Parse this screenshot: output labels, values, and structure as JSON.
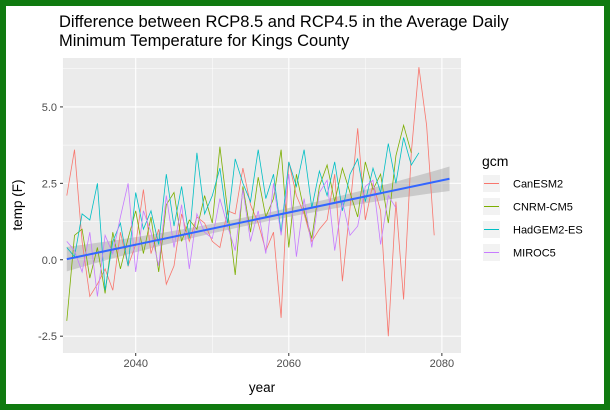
{
  "chart_data": {
    "type": "line",
    "title": "Difference between RCP8.5 and RCP4.5 in the Average Daily Minimum Temperature for Kings County",
    "title_lines": [
      "Difference between RCP8.5 and RCP4.5 in the Average Daily",
      "Minimum Temperature for Kings County"
    ],
    "xlabel": "year",
    "ylabel": "temp (F)",
    "xlim": [
      2030.5,
      2082.5
    ],
    "ylim": [
      -3.05,
      6.6
    ],
    "xticks": [
      2040,
      2060,
      2080
    ],
    "yticks": [
      -2.5,
      0.0,
      2.5,
      5.0
    ],
    "ytick_labels": [
      "-2.5",
      "0.0",
      "2.5",
      "5.0"
    ],
    "grid": true,
    "legend": {
      "title": "gcm",
      "position": "right"
    },
    "x": [
      2031,
      2032,
      2033,
      2034,
      2035,
      2036,
      2037,
      2038,
      2039,
      2040,
      2041,
      2042,
      2043,
      2044,
      2045,
      2046,
      2047,
      2048,
      2049,
      2050,
      2051,
      2052,
      2053,
      2054,
      2055,
      2056,
      2057,
      2058,
      2059,
      2060,
      2061,
      2062,
      2063,
      2064,
      2065,
      2066,
      2067,
      2068,
      2069,
      2070,
      2071,
      2072,
      2073,
      2074,
      2075,
      2076,
      2077,
      2078,
      2079,
      2080,
      2081
    ],
    "series": [
      {
        "name": "CanESM2",
        "color": "#F8766D",
        "values": [
          2.1,
          3.6,
          0.6,
          -1.2,
          -0.8,
          -0.3,
          -1.0,
          0.9,
          -0.2,
          0.5,
          2.3,
          0.2,
          1.0,
          -0.8,
          -0.2,
          1.5,
          0.6,
          1.4,
          1.2,
          0.6,
          0.4,
          1.6,
          1.5,
          3.0,
          1.8,
          1.2,
          0.3,
          0.9,
          -1.9,
          3.2,
          2.1,
          1.5,
          0.6,
          1.0,
          1.3,
          2.8,
          -0.7,
          1.7,
          4.3,
          1.3,
          2.5,
          1.6,
          -2.5,
          1.9,
          -1.3,
          3.5,
          6.3,
          4.4,
          0.8,
          null,
          null
        ]
      },
      {
        "name": "CNRM-CM5",
        "color": "#7CAE00",
        "values": [
          -2.0,
          0.8,
          1.0,
          -0.6,
          0.4,
          -1.1,
          0.9,
          -0.3,
          0.7,
          1.6,
          0.2,
          1.4,
          -0.4,
          1.8,
          2.2,
          0.6,
          1.3,
          1.0,
          2.1,
          1.2,
          3.7,
          1.6,
          -0.5,
          2.4,
          0.9,
          2.7,
          1.4,
          2.0,
          3.6,
          0.4,
          2.8,
          1.6,
          0.7,
          2.4,
          3.1,
          1.9,
          3.0,
          2.2,
          1.4,
          3.2,
          2.3,
          2.8,
          1.2,
          3.4,
          4.4,
          3.5,
          null,
          null,
          null,
          null,
          null
        ]
      },
      {
        "name": "HadGEM2-ES",
        "color": "#00BFC4",
        "values": [
          0.4,
          0.1,
          1.5,
          1.3,
          2.5,
          -1.0,
          0.6,
          1.2,
          -0.2,
          2.2,
          1.0,
          1.6,
          0.5,
          2.8,
          1.1,
          2.4,
          0.7,
          3.5,
          1.5,
          2.1,
          3.0,
          1.2,
          3.3,
          2.5,
          1.9,
          3.6,
          2.0,
          2.8,
          0.9,
          3.2,
          2.4,
          3.6,
          1.7,
          2.9,
          2.1,
          3.2,
          1.6,
          2.8,
          3.3,
          1.9,
          3.0,
          2.2,
          3.8,
          2.5,
          4.0,
          3.1,
          3.5,
          null,
          null,
          null,
          null
        ]
      },
      {
        "name": "MIROC5",
        "color": "#C77CFF",
        "values": [
          0.6,
          0.3,
          -0.4,
          0.9,
          -1.2,
          0.8,
          0.2,
          1.4,
          2.5,
          -0.4,
          1.6,
          0.9,
          -0.2,
          2.1,
          0.4,
          1.8,
          -0.3,
          1.5,
          0.9,
          0.7,
          2.0,
          1.1,
          0.3,
          2.3,
          0.6,
          1.6,
          0.2,
          2.5,
          0.8,
          2.8,
          0.1,
          2.0,
          0.4,
          2.2,
          2.6,
          0.3,
          1.9,
          0.8,
          1.1,
          2.4,
          2.6,
          0.5,
          2.1,
          1.7,
          null,
          null,
          null,
          null,
          null,
          null,
          null
        ]
      }
    ],
    "trend": {
      "color": "#3366FF",
      "x": [
        2031,
        2081
      ],
      "y": [
        0.02,
        2.65
      ]
    }
  }
}
